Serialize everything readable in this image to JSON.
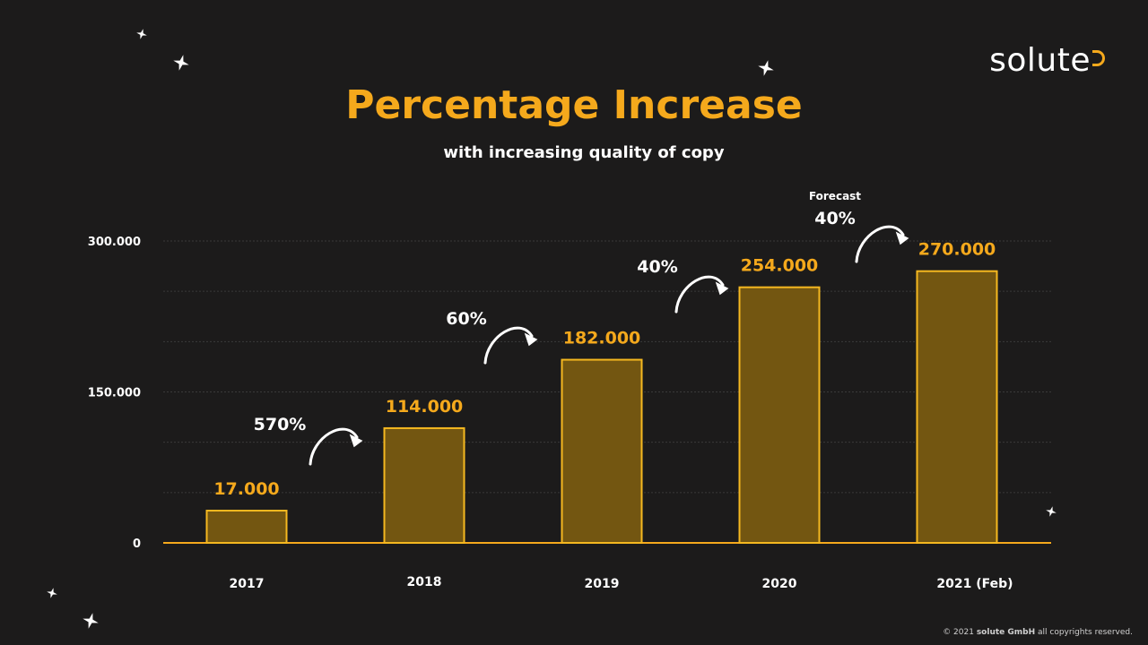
{
  "logo": {
    "text": "solute"
  },
  "footer": {
    "prefix": "© 2021",
    "company": "solute GmbH",
    "suffix": "all copyrights reserved."
  },
  "colors": {
    "background": "#1c1b1b",
    "accent": "#f5a91c",
    "bar_fill": "#735611",
    "bar_stroke": "#f5b820",
    "text": "#ffffff"
  },
  "chart_data": {
    "type": "bar",
    "title": "Percentage Increase",
    "subtitle": "with increasing quality of copy",
    "categories": [
      "2017",
      "2018",
      "2019",
      "2020",
      "2021 (Feb)"
    ],
    "values": [
      17000,
      114000,
      182000,
      254000,
      270000
    ],
    "value_labels": [
      "17.000",
      "114.000",
      "182.000",
      "254.000",
      "270.000"
    ],
    "y_ticks": [
      {
        "value": 0,
        "label": "0"
      },
      {
        "value": 150000,
        "label": "150.000"
      },
      {
        "value": 300000,
        "label": "300.000"
      }
    ],
    "ylim": [
      0,
      300000
    ],
    "grid": true,
    "growth_annotations": [
      {
        "between": [
          "2017",
          "2018"
        ],
        "label": "570%"
      },
      {
        "between": [
          "2018",
          "2019"
        ],
        "label": "60%"
      },
      {
        "between": [
          "2019",
          "2020"
        ],
        "label": "40%"
      },
      {
        "between": [
          "2020",
          "2021 (Feb)"
        ],
        "label": "40%",
        "note": "Forecast"
      }
    ]
  }
}
